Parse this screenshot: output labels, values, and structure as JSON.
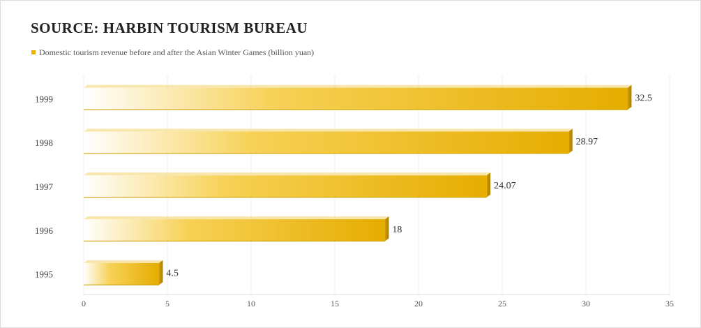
{
  "chart_data": {
    "type": "bar",
    "orientation": "horizontal",
    "title": "SOURCE: HARBIN TOURISM BUREAU",
    "legend_text": "Domestic tourism revenue before and after the Asian Winter Games (billion yuan)",
    "categories": [
      "1999",
      "1998",
      "1997",
      "1996",
      "1995"
    ],
    "series": [
      {
        "name": "Domestic tourism revenue before and after the Asian Winter Games (billion yuan)",
        "values": [
          32.5,
          28.97,
          24.07,
          18,
          4.5
        ]
      }
    ],
    "data_labels": [
      "32.5",
      "28.97",
      "24.07",
      "18",
      "4.5"
    ],
    "x_ticks": [
      "0",
      "5",
      "10",
      "15",
      "20",
      "25",
      "30",
      "35"
    ],
    "xlim": [
      0,
      35
    ],
    "grid": true,
    "legend_position": "top-left",
    "bar_color": "#e8b400",
    "bar_edge_color": "#b58a00"
  }
}
